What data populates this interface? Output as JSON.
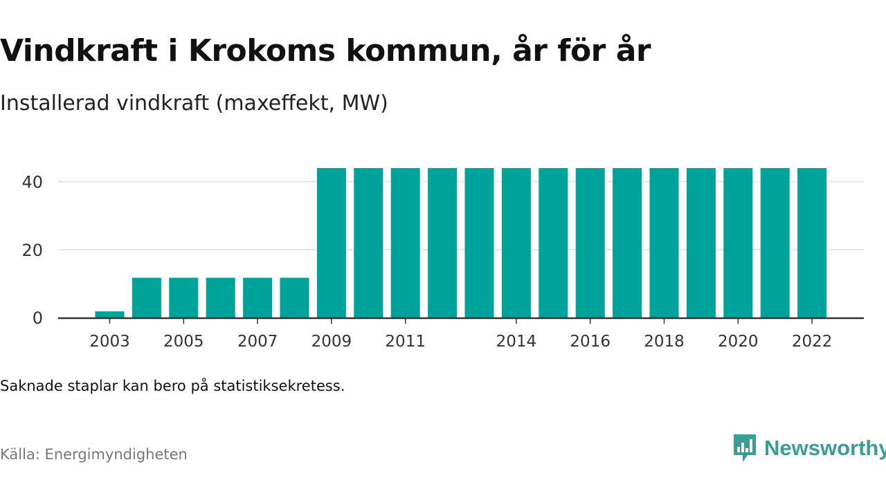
{
  "title": "Vindkraft i Krokoms kommun, år för år",
  "subtitle": "Installerad vindkraft (maxeffekt, MW)",
  "note": "Saknade staplar kan bero på statistiksekretess.",
  "source": "Källa: Energimyndigheten",
  "brand": {
    "name": "Newsworthy",
    "icon": "newsworthy-chart-icon",
    "color": "#3a9e96"
  },
  "colors": {
    "bar": "#00a39a",
    "grid": "#dddddd",
    "axis": "#333333",
    "text": "#333333"
  },
  "chart_data": {
    "type": "bar",
    "categories": [
      2003,
      2004,
      2005,
      2006,
      2007,
      2008,
      2009,
      2010,
      2011,
      2012,
      2013,
      2014,
      2015,
      2016,
      2017,
      2018,
      2019,
      2020,
      2021,
      2022
    ],
    "values": [
      1.8,
      11.7,
      11.7,
      11.7,
      11.7,
      11.7,
      44,
      44,
      44,
      44,
      44,
      44,
      44,
      44,
      44,
      44,
      44,
      44,
      44,
      44
    ],
    "xtick_labels": [
      "2003",
      "2005",
      "2007",
      "2009",
      "2011",
      "2014",
      "2016",
      "2018",
      "2020",
      "2022"
    ],
    "yticks": [
      0,
      20,
      40
    ],
    "ylim": [
      0,
      44
    ],
    "xlabel": "",
    "ylabel": "",
    "grid": true,
    "legend": false
  }
}
